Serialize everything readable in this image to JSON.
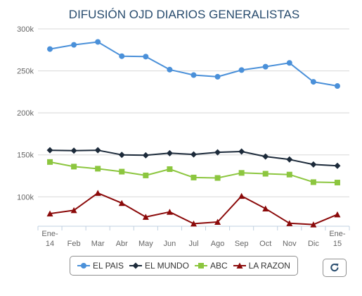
{
  "chart_data": {
    "type": "line",
    "title": "DIFUSIÓN OJD DIARIOS GENERALISTAS",
    "categories": [
      "Ene-14",
      "Feb",
      "Mar",
      "Abr",
      "May",
      "Jun",
      "Jul",
      "Ago",
      "Sep",
      "Oct",
      "Nov",
      "Dic",
      "Ene-15"
    ],
    "x_tick_labels": [
      [
        "Ene-",
        "14"
      ],
      [
        "Feb"
      ],
      [
        "Mar"
      ],
      [
        "Abr"
      ],
      [
        "May"
      ],
      [
        "Jun"
      ],
      [
        "Jul"
      ],
      [
        "Ago"
      ],
      [
        "Sep"
      ],
      [
        "Oct"
      ],
      [
        "Nov"
      ],
      [
        "Dic"
      ],
      [
        "Ene-",
        "15"
      ]
    ],
    "y_ticks": [
      {
        "value": 100000,
        "label": "100k"
      },
      {
        "value": 150000,
        "label": "150k"
      },
      {
        "value": 200000,
        "label": "200k"
      },
      {
        "value": 250000,
        "label": "250k"
      },
      {
        "value": 300000,
        "label": "300k"
      }
    ],
    "ylim": [
      65000,
      300000
    ],
    "grid": true,
    "legend_position": "bottom",
    "series": [
      {
        "name": "EL PAIS",
        "color": "#4a90d9",
        "marker": "circle",
        "values": [
          276000,
          281000,
          284500,
          267500,
          267000,
          251500,
          245000,
          243000,
          251000,
          255000,
          259500,
          237000,
          232000
        ]
      },
      {
        "name": "EL MUNDO",
        "color": "#1c2a3a",
        "marker": "diamond",
        "values": [
          155500,
          155000,
          155500,
          150000,
          149500,
          152000,
          150500,
          153000,
          154000,
          148000,
          144500,
          138500,
          137000
        ]
      },
      {
        "name": "ABC",
        "color": "#8cc63f",
        "marker": "square",
        "values": [
          141500,
          136000,
          133500,
          130000,
          125500,
          133000,
          123000,
          122500,
          128500,
          127500,
          126500,
          117500,
          117000
        ]
      },
      {
        "name": "LA RAZON",
        "color": "#8b0a0a",
        "marker": "triangle",
        "values": [
          80000,
          84000,
          104500,
          92500,
          76000,
          82000,
          68000,
          70000,
          101000,
          86000,
          68500,
          67000,
          79000
        ]
      }
    ]
  },
  "ui": {
    "export_icon": "refresh-icon"
  }
}
